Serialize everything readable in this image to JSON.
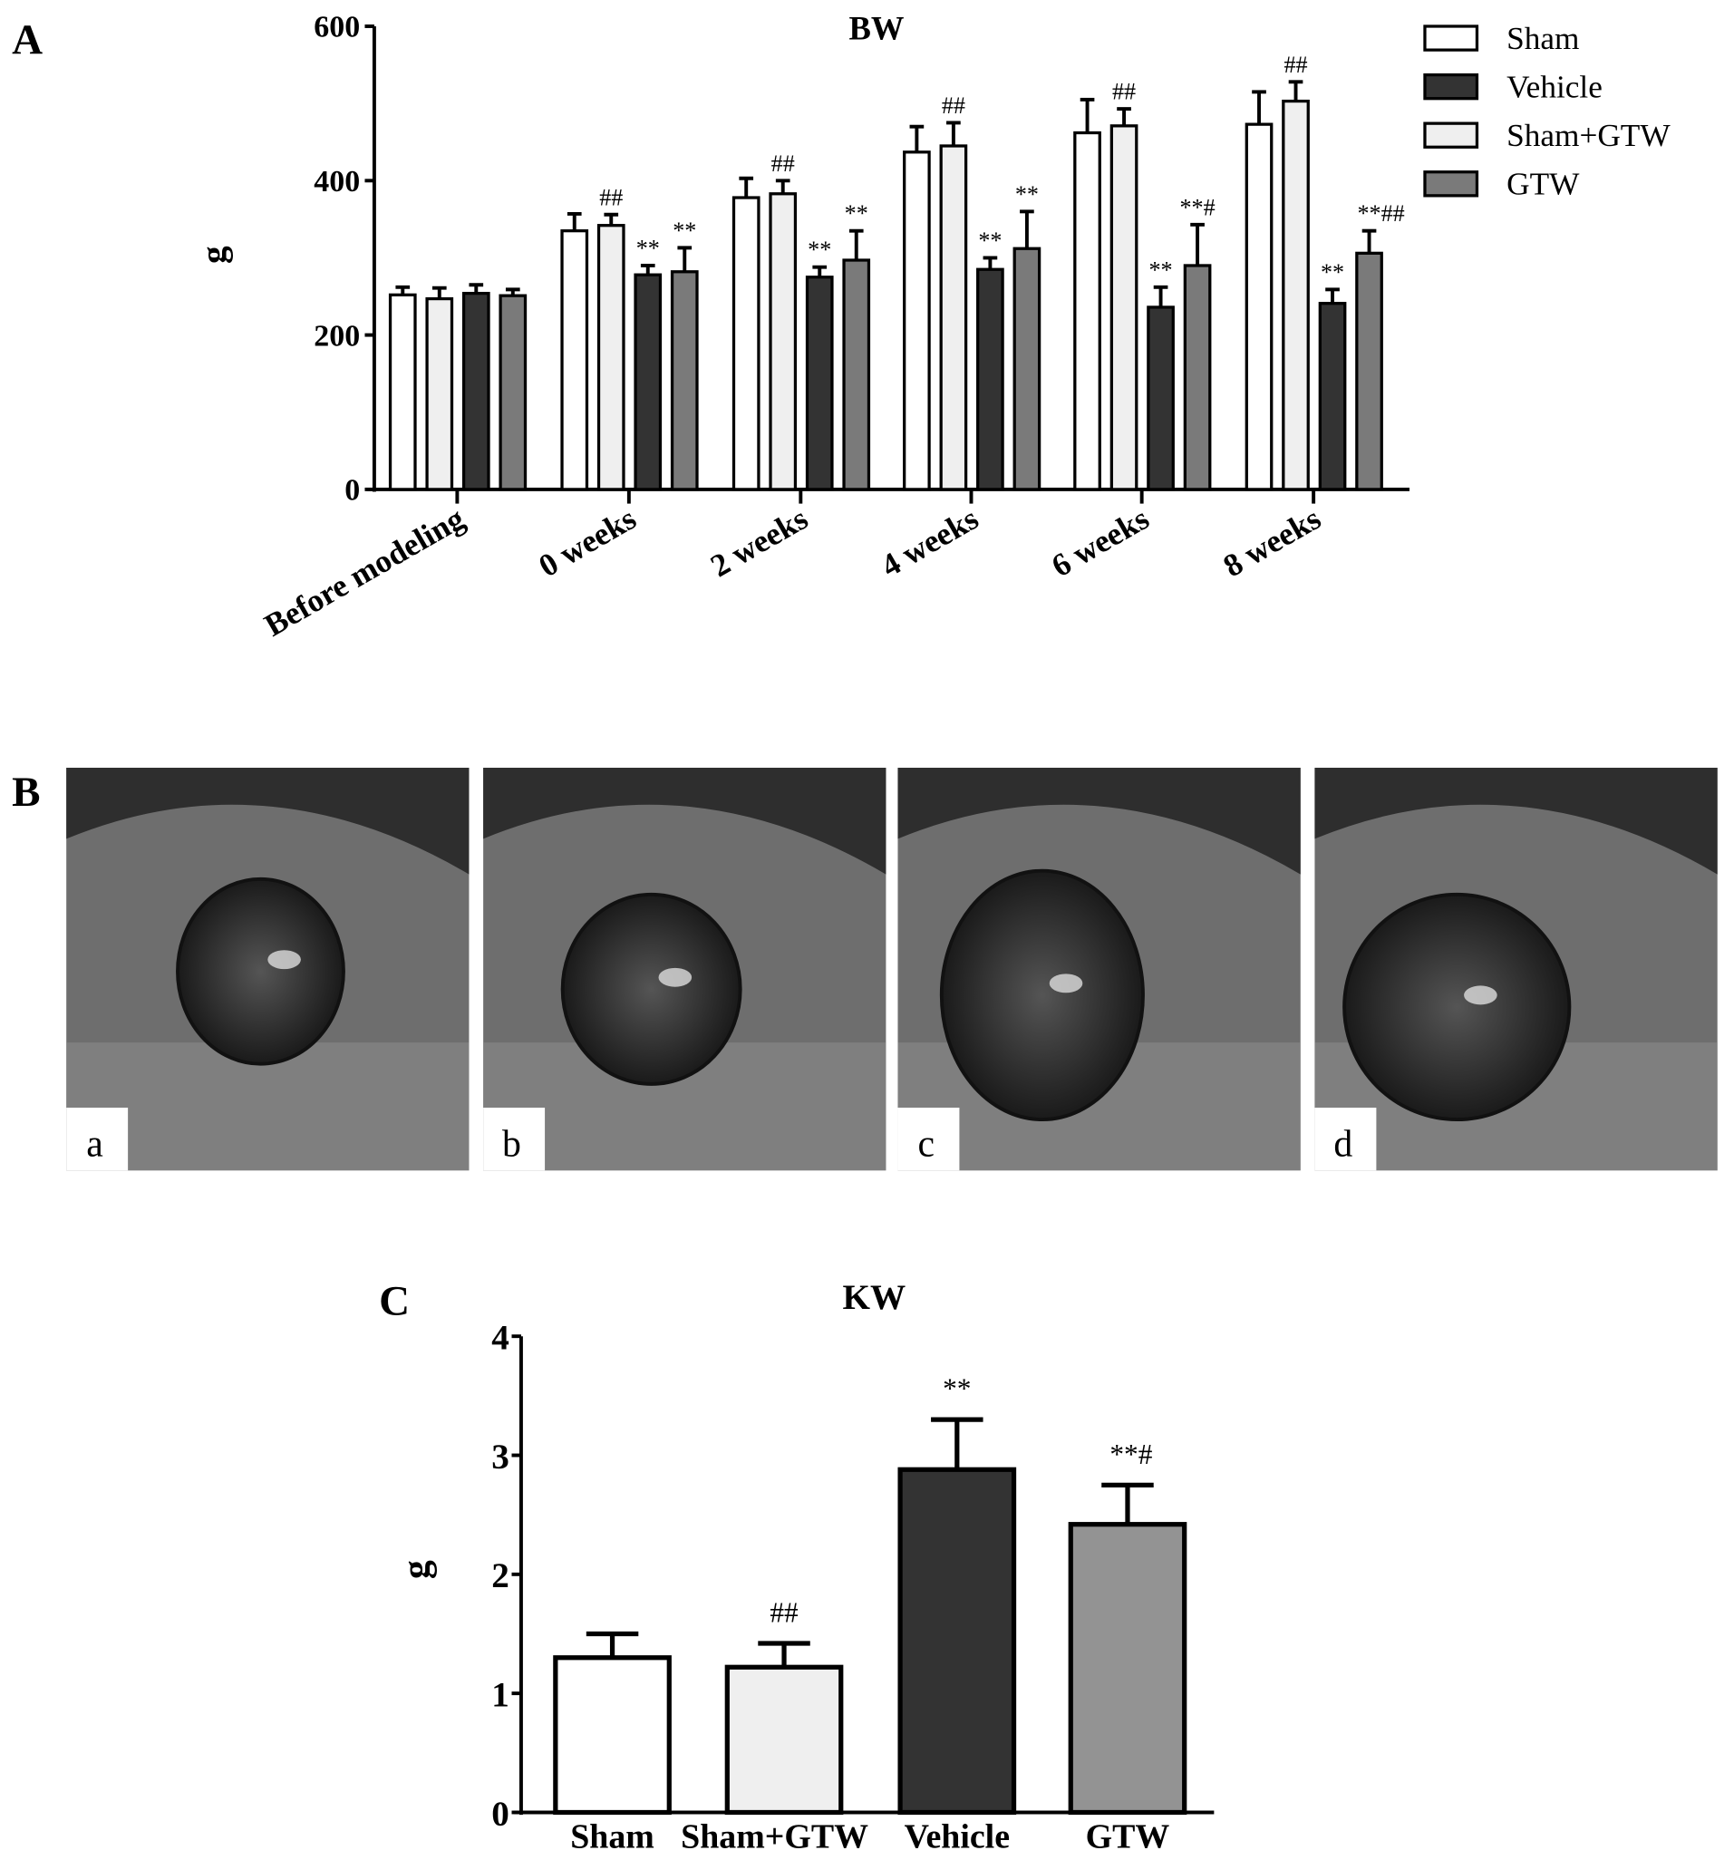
{
  "panels": {
    "a_label": "A",
    "b_label": "B",
    "c_label": "C"
  },
  "colors": {
    "Sham": "#ffffff",
    "Sham+GTW": "#efefef",
    "Vehicle": "#333333",
    "GTW": "#7a7a7a",
    "GTW_C": "#939393"
  },
  "legend": [
    "Sham",
    "Vehicle",
    "Sham+GTW",
    "GTW"
  ],
  "photos": {
    "labels": [
      "a",
      "b",
      "c",
      "d"
    ]
  },
  "chart_data": [
    {
      "type": "bar",
      "title": "BW",
      "xlabel": "",
      "ylabel": "g",
      "ylim": [
        0,
        600
      ],
      "yticks": [
        0,
        200,
        400,
        600
      ],
      "legend_position": "top-right",
      "categories": [
        "Before modeling",
        "0 weeks",
        "2 weeks",
        "4 weeks",
        "6 weeks",
        "8 weeks"
      ],
      "series": [
        {
          "name": "Sham",
          "values": [
            252,
            335,
            378,
            437,
            462,
            473
          ],
          "error": [
            10,
            22,
            25,
            33,
            43,
            42
          ],
          "annotations": [
            "",
            "",
            "",
            "",
            "",
            ""
          ]
        },
        {
          "name": "Sham+GTW",
          "values": [
            247,
            342,
            383,
            445,
            471,
            503
          ],
          "error": [
            14,
            14,
            17,
            30,
            22,
            25
          ],
          "annotations": [
            "",
            "##",
            "##",
            "##",
            "##",
            "##"
          ]
        },
        {
          "name": "Vehicle",
          "values": [
            254,
            278,
            275,
            285,
            236,
            241
          ],
          "error": [
            11,
            12,
            13,
            15,
            26,
            18
          ],
          "annotations": [
            "",
            "**",
            "**",
            "**",
            "**",
            "**"
          ]
        },
        {
          "name": "GTW",
          "values": [
            251,
            282,
            297,
            312,
            290,
            306
          ],
          "error": [
            8,
            31,
            38,
            48,
            53,
            29
          ],
          "annotations": [
            "",
            "**",
            "**",
            "**",
            "**#",
            "**##"
          ]
        }
      ]
    },
    {
      "type": "bar",
      "title": "KW",
      "xlabel": "",
      "ylabel": "g",
      "ylim": [
        0,
        4
      ],
      "yticks": [
        0,
        1,
        2,
        3,
        4
      ],
      "categories": [
        "Sham",
        "Sham+GTW",
        "Vehicle",
        "GTW"
      ],
      "values": [
        1.3,
        1.22,
        2.88,
        2.42
      ],
      "error": [
        0.2,
        0.2,
        0.42,
        0.33
      ],
      "annotations": [
        "",
        "##",
        "**",
        "**#"
      ]
    }
  ]
}
